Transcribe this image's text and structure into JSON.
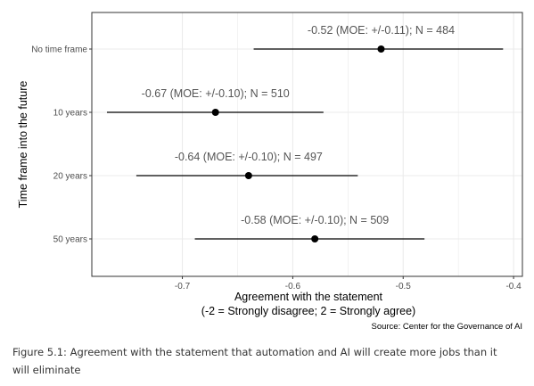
{
  "chart_data": {
    "type": "dot-errorbar",
    "ylabel": "Time frame into the future",
    "xlabel_line1": "Agreement with the statement",
    "xlabel_line2": "(-2 = Strongly disagree; 2 = Strongly agree)",
    "source": "Source: Center for the Governance of AI",
    "xlim": [
      -0.782,
      -0.392
    ],
    "xticks": [
      -0.7,
      -0.6,
      -0.5,
      -0.4
    ],
    "xtick_labels": [
      "-0.7",
      "-0.6",
      "-0.5",
      "-0.4"
    ],
    "grid": true,
    "points": [
      {
        "category": "No time frame",
        "value": -0.52,
        "lower": -0.6354,
        "upper": -0.4095,
        "label": "-0.52 (MOE: +/-0.11); N = 484"
      },
      {
        "category": "10 years",
        "value": -0.67,
        "lower": -0.7683,
        "upper": -0.5722,
        "label": "-0.67 (MOE: +/-0.10); N = 510"
      },
      {
        "category": "20 years",
        "value": -0.64,
        "lower": -0.7417,
        "upper": -0.5411,
        "label": "-0.64 (MOE: +/-0.10); N = 497"
      },
      {
        "category": "50 years",
        "value": -0.58,
        "lower": -0.6887,
        "upper": -0.4807,
        "label": "-0.58 (MOE: +/-0.10); N = 509"
      }
    ],
    "point_color": "#000000",
    "label_color": "#555555",
    "grid_color": "#ebebeb",
    "panel_border_color": "#333333"
  },
  "caption": "Figure 5.1: Agreement with the statement that automation and AI will create more jobs than it will eliminate"
}
